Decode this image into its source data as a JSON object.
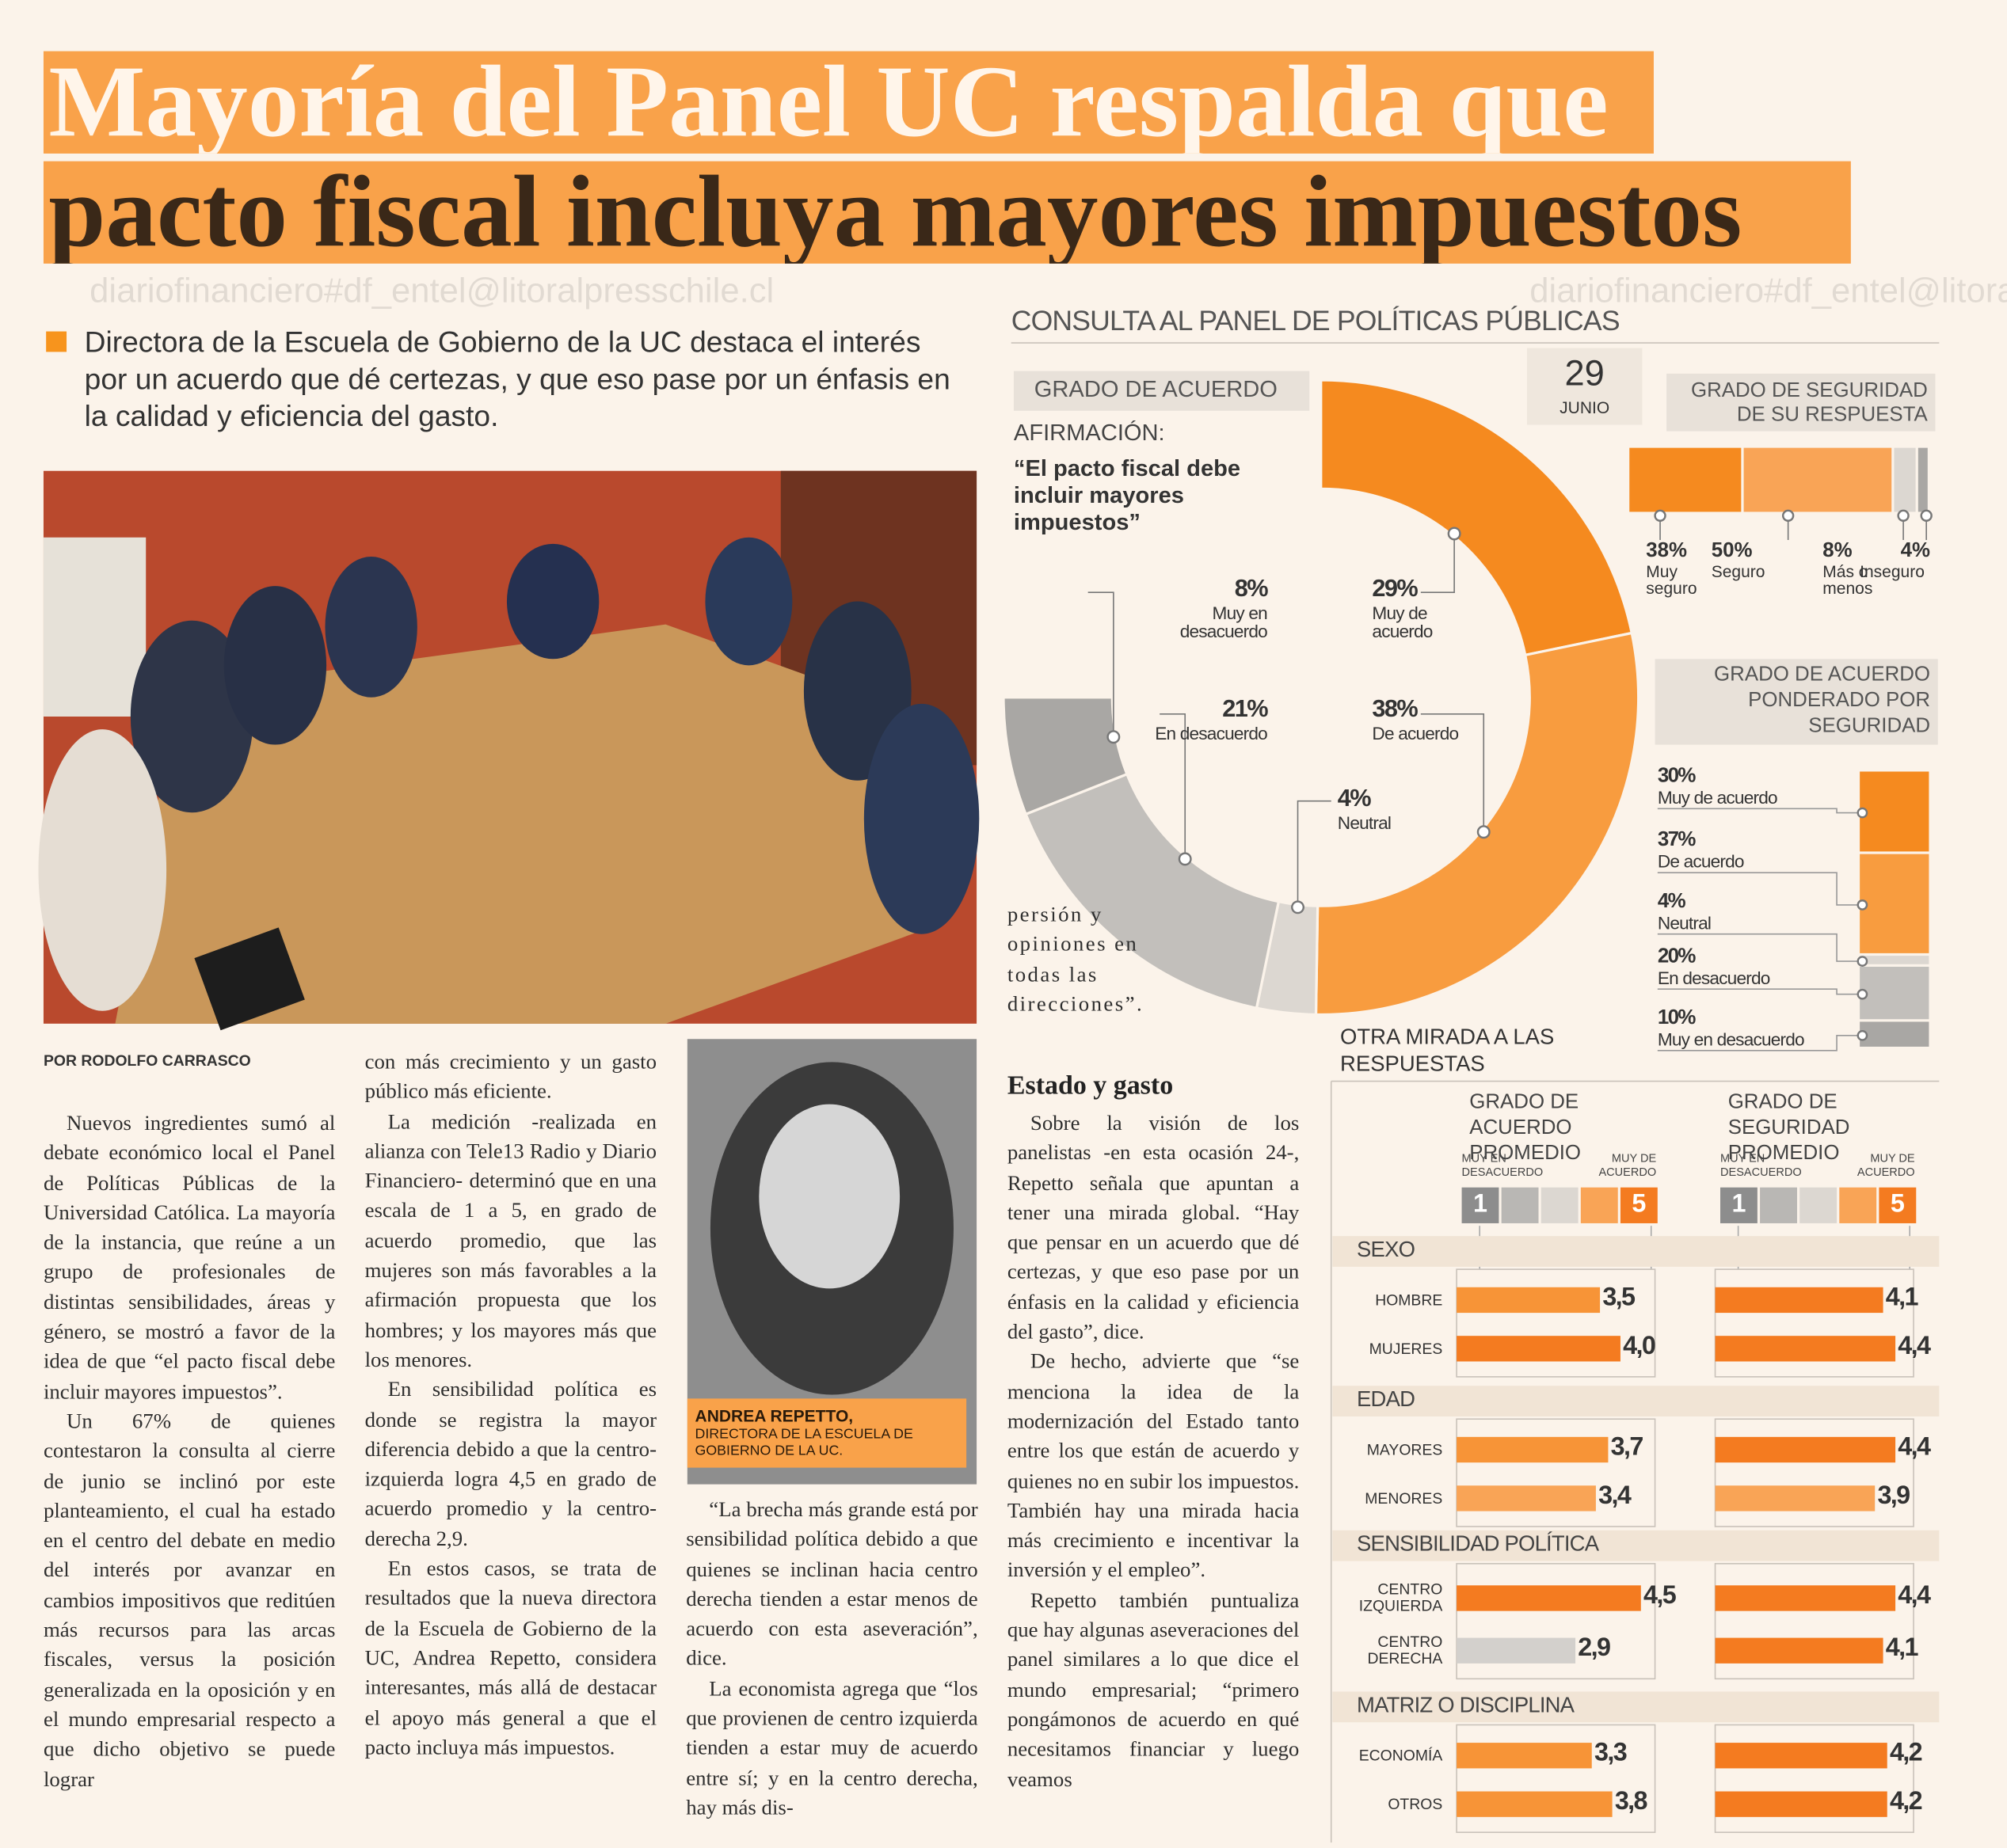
{
  "header": {
    "title_line1": "Mayoría del Panel UC respalda que",
    "title_line2": "pacto fiscal incluya mayores impuestos",
    "lead": "Directora de la Escuela de Gobierno de la UC destaca el interés por un acuerdo que dé certezas, y que eso pase por un énfasis en la calidad y eficiencia del gasto."
  },
  "watermark": "diariofinanciero#df_entel@litoralpresschile.cl",
  "article": {
    "byline": "POR RODOLFO CARRASCO",
    "columns": [
      [
        "Nuevos ingredientes sumó al debate económico local el Panel de Políticas Públicas de la Universidad Católica. La mayoría de la instancia, que reúne a un grupo de profesionales de distintas sensibilidades, áreas y género, se mostró a favor de la idea de que “el pacto fiscal debe incluir mayores impuestos”.",
        "Un 67% de quienes contestaron la consulta al cierre de junio se inclinó por este planteamiento, el cual ha estado en el centro del debate en medio del interés por avanzar en cambios impositivos que reditúen más recursos para las arcas fiscales, versus la posición generalizada en la oposición y en el mundo empresarial respecto a que dicho objetivo se puede lograr"
      ],
      [
        "con más crecimiento y un gasto público más eficiente.",
        "La medición -realizada en alianza con Tele13 Radio y Diario Financiero- determinó que en una escala de 1 a 5, en grado de acuerdo promedio, que las mujeres son más favorables a la afirmación propuesta que los hombres; y los mayores más que los menores.",
        "En sensibilidad política es donde se registra la mayor diferencia debido a que la centro-izquierda logra 4,5 en grado de acuerdo promedio y la centro-derecha 2,9.",
        "En estos casos, se trata de resultados que la nueva directora de la Escuela de Gobierno de la UC, Andrea Repetto, considera interesantes, más allá de destacar el apoyo más general a que el pacto incluya más impuestos."
      ],
      [
        "“La brecha más grande está por sensibilidad política debido a que quienes se inclinan hacia centro derecha tienden a estar menos de acuerdo con esta aseveración”, dice.",
        "La economista agrega que “los que provienen de centro izquierda tienden a estar muy de acuerdo entre sí; y en la centro derecha, hay más dis-"
      ],
      [
        "Sobre la visión de los panelistas -en esta ocasión 24-, Repetto señala que apuntan a tener una mirada global. “Hay que pensar en un acuerdo que dé certezas, y que eso pase por un énfasis en la calidad y eficiencia del gasto”, dice.",
        "De hecho, advierte que “se menciona la idea de la modernización del Estado tanto entre los que están de acuerdo y quienes no en subir los impuestos. También hay una mirada hacia más crecimiento e incentivar la inversión y el empleo”.",
        "Repetto también puntualiza que hay algunas aseveraciones del panel similares a lo que dice el mundo empresarial; “primero pongámonos de acuerdo en qué necesitamos financiar y luego veamos"
      ]
    ],
    "continuation": "persión y opiniones en todas las direcciones”.",
    "subhead": "Estado y gasto",
    "photo_caption": {
      "name": "ANDREA REPETTO,",
      "role": "DIRECTORA DE LA ESCUELA DE GOBIERNO DE LA UC."
    }
  },
  "infographic": {
    "title": "CONSULTA AL PANEL DE POLÍTICAS PÚBLICAS",
    "date": {
      "day": 29,
      "month": "JUNIO"
    },
    "agreement": {
      "type": "donut",
      "title": "GRADO DE ACUERDO",
      "statement_label": "AFIRMACIÓN:",
      "statement": "“El pacto fiscal debe incluir mayores impuestos”",
      "categories": [
        "Muy de acuerdo",
        "De acuerdo",
        "Neutral",
        "En desacuerdo",
        "Muy en desacuerdo"
      ],
      "values": [
        29,
        38,
        4,
        21,
        8
      ],
      "value_labels": [
        "29%",
        "38%",
        "4%",
        "21%",
        "8%"
      ],
      "colors": [
        "#f58a1f",
        "#f89c3f",
        "#dcd7d1",
        "#c2bfbb",
        "#a9a7a4"
      ]
    },
    "certainty": {
      "type": "stacked-bar",
      "title": "GRADO DE SEGURIDAD DE SU RESPUESTA",
      "categories": [
        "Muy seguro",
        "Seguro",
        "Más o menos",
        "Inseguro"
      ],
      "values": [
        38,
        50,
        8,
        4
      ],
      "value_labels": [
        "38%",
        "50%",
        "8%",
        "4%"
      ],
      "colors": [
        "#f58a1f",
        "#f9a456",
        "#dcd7d1",
        "#a9a7a4"
      ]
    },
    "weighted": {
      "type": "stacked-bar",
      "title": "GRADO DE ACUERDO PONDERADO POR SEGURIDAD",
      "categories": [
        "Muy de acuerdo",
        "De acuerdo",
        "Neutral",
        "En desacuerdo",
        "Muy en desacuerdo"
      ],
      "values": [
        30,
        37,
        4,
        20,
        10
      ],
      "value_labels": [
        "30%",
        "37%",
        "4%",
        "20%",
        "10%"
      ],
      "colors": [
        "#f58a1f",
        "#f89c3f",
        "#dcd7d1",
        "#c2bfbb",
        "#a9a7a4"
      ]
    },
    "breakdown": {
      "type": "bar",
      "title": "OTRA MIRADA A LAS RESPUESTAS",
      "xlim": [
        0,
        5
      ],
      "scale": {
        "low_label": "MUY EN DESACUERDO",
        "high_label": "MUY DE ACUERDO",
        "low": 1,
        "high": 5
      },
      "panels": [
        {
          "title": "GRADO DE ACUERDO PROMEDIO"
        },
        {
          "title": "GRADO DE SEGURIDAD PROMEDIO"
        }
      ],
      "groups": [
        {
          "name": "SEXO",
          "categories": [
            "HOMBRE",
            "MUJERES"
          ],
          "agreement": {
            "values": [
              3.5,
              4.0
            ],
            "value_labels": [
              "3,5",
              "4,0"
            ],
            "colors": [
              "#f79437",
              "#f47b20"
            ]
          },
          "certainty": {
            "values": [
              4.1,
              4.4
            ],
            "value_labels": [
              "4,1",
              "4,4"
            ],
            "colors": [
              "#f47b20",
              "#f47b20"
            ]
          }
        },
        {
          "name": "EDAD",
          "categories": [
            "MAYORES",
            "MENORES"
          ],
          "agreement": {
            "values": [
              3.7,
              3.4
            ],
            "value_labels": [
              "3,7",
              "3,4"
            ],
            "colors": [
              "#f79437",
              "#f9a456"
            ]
          },
          "certainty": {
            "values": [
              4.4,
              3.9
            ],
            "value_labels": [
              "4,4",
              "3,9"
            ],
            "colors": [
              "#f47b20",
              "#f9a456"
            ]
          }
        },
        {
          "name": "SENSIBILIDAD POLÍTICA",
          "categories": [
            "CENTRO IZQUIERDA",
            "CENTRO DERECHA"
          ],
          "agreement": {
            "values": [
              4.5,
              2.9
            ],
            "value_labels": [
              "4,5",
              "2,9"
            ],
            "colors": [
              "#f47b20",
              "#d3d0cc"
            ]
          },
          "certainty": {
            "values": [
              4.4,
              4.1
            ],
            "value_labels": [
              "4,4",
              "4,1"
            ],
            "colors": [
              "#f47b20",
              "#f47b20"
            ]
          }
        },
        {
          "name": "MATRIZ O DISCIPLINA",
          "categories": [
            "ECONOMÍA",
            "OTROS"
          ],
          "agreement": {
            "values": [
              3.3,
              3.8
            ],
            "value_labels": [
              "3,3",
              "3,8"
            ],
            "colors": [
              "#f79437",
              "#f79437"
            ]
          },
          "certainty": {
            "values": [
              4.2,
              4.2
            ],
            "value_labels": [
              "4,2",
              "4,2"
            ],
            "colors": [
              "#f47b20",
              "#f47b20"
            ]
          }
        }
      ]
    }
  }
}
